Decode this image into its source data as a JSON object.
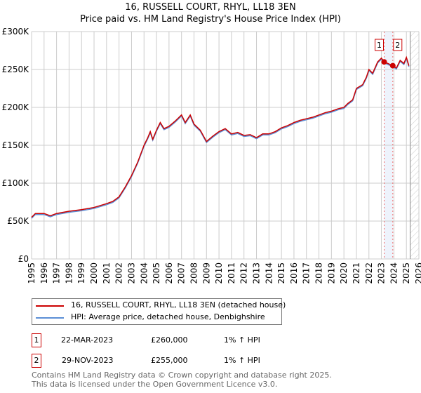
{
  "title": "16, RUSSELL COURT, RHYL, LL18 3EN",
  "subtitle": "Price paid vs. HM Land Registry's House Price Index (HPI)",
  "chart_data": {
    "type": "line",
    "xlim": [
      1995,
      2026
    ],
    "ylim": [
      0,
      300000
    ],
    "x_ticks": [
      "1995",
      "1996",
      "1997",
      "1998",
      "1999",
      "2000",
      "2001",
      "2002",
      "2003",
      "2004",
      "2005",
      "2006",
      "2007",
      "2008",
      "2009",
      "2010",
      "2011",
      "2012",
      "2013",
      "2014",
      "2015",
      "2016",
      "2017",
      "2018",
      "2019",
      "2020",
      "2021",
      "2022",
      "2023",
      "2024",
      "2025",
      "2026"
    ],
    "y_ticks": [
      {
        "v": 0,
        "label": "£0"
      },
      {
        "v": 50000,
        "label": "£50K"
      },
      {
        "v": 100000,
        "label": "£100K"
      },
      {
        "v": 150000,
        "label": "£150K"
      },
      {
        "v": 200000,
        "label": "£200K"
      },
      {
        "v": 250000,
        "label": "£250K"
      },
      {
        "v": 300000,
        "label": "£300K"
      }
    ],
    "series": [
      {
        "name": "16, RUSSELL COURT, RHYL, LL18 3EN (detached house)",
        "color": "#cc0000",
        "x": [
          1995,
          1995.3,
          1996,
          1996.5,
          1997,
          1998,
          1999,
          2000,
          2001,
          2001.5,
          2002,
          2002.5,
          2003,
          2003.5,
          2004,
          2004.3,
          2004.5,
          2004.7,
          2005,
          2005.3,
          2005.6,
          2006,
          2006.5,
          2007,
          2007.3,
          2007.7,
          2008,
          2008.5,
          2009,
          2009.5,
          2010,
          2010.5,
          2011,
          2011.5,
          2012,
          2012.5,
          2013,
          2013.5,
          2014,
          2014.5,
          2015,
          2015.5,
          2016,
          2016.5,
          2017,
          2017.5,
          2018,
          2018.5,
          2019,
          2019.5,
          2020,
          2020.3,
          2020.7,
          2021,
          2021.5,
          2021.8,
          2022,
          2022.3,
          2022.7,
          2023,
          2023.22,
          2023.5,
          2023.91,
          2024.2,
          2024.5,
          2024.8,
          2025,
          2025.2
        ],
        "y": [
          55,
          60,
          60,
          57,
          60,
          63,
          65,
          68,
          73,
          76,
          82,
          95,
          110,
          128,
          150,
          160,
          168,
          158,
          170,
          180,
          172,
          175,
          182,
          190,
          180,
          190,
          178,
          170,
          155,
          162,
          168,
          172,
          165,
          167,
          163,
          164,
          160,
          165,
          165,
          168,
          173,
          176,
          180,
          183,
          185,
          187,
          190,
          193,
          195,
          198,
          200,
          205,
          210,
          225,
          230,
          240,
          250,
          245,
          260,
          265,
          260,
          258,
          255,
          252,
          262,
          258,
          266,
          255
        ]
      },
      {
        "name": "HPI: Average price, detached house, Denbighshire",
        "color": "#5b8fd6"
      }
    ],
    "sales": [
      {
        "id": "1",
        "date": "22-MAR-2023",
        "x": 2023.22,
        "price": "£260,000",
        "value": 260000,
        "hpi": "1% ↑ HPI"
      },
      {
        "id": "2",
        "date": "29-NOV-2023",
        "x": 2023.91,
        "price": "£255,000",
        "value": 255000,
        "hpi": "1% ↑ HPI"
      }
    ],
    "forecast_from": 2025.3,
    "grid": true
  },
  "footer": [
    "Contains HM Land Registry data © Crown copyright and database right 2025.",
    "This data is licensed under the Open Government Licence v3.0."
  ]
}
